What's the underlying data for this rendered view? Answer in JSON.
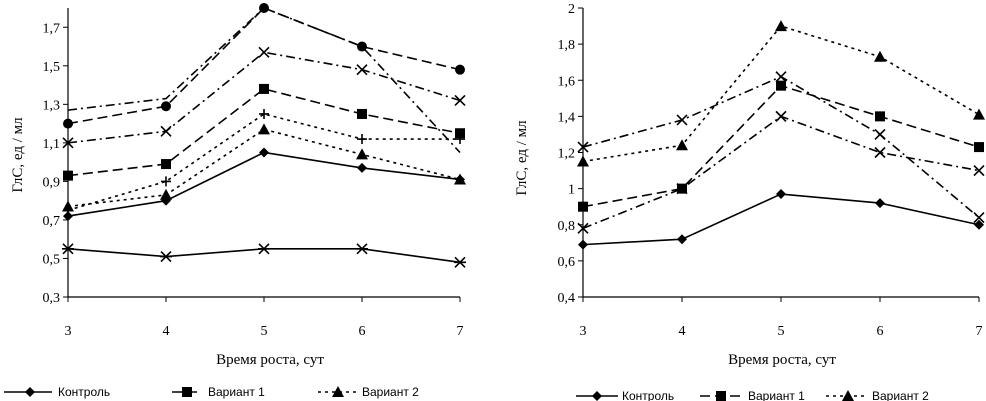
{
  "chart_data": [
    {
      "type": "line",
      "title": "",
      "xlabel": "Время роста, сут",
      "ylabel": "ГлС, ед / мл",
      "x": [
        3,
        4,
        5,
        6,
        7
      ],
      "xlim": [
        3,
        7
      ],
      "ylim": [
        0.3,
        1.8
      ],
      "yticks": [
        "0,3",
        "0,5",
        "0,7",
        "0,9",
        "1,1",
        "1,3",
        "1,5",
        "1,7"
      ],
      "ytick_values": [
        0.3,
        0.5,
        0.7,
        0.9,
        1.1,
        1.3,
        1.5,
        1.7
      ],
      "xticks": [
        "3",
        "4",
        "5",
        "6",
        "7"
      ],
      "grid": false,
      "legend": [
        "Контроль",
        "Вариант 1",
        "Вариант 2"
      ],
      "series": [
        {
          "values": [
            0.72,
            0.8,
            1.05,
            0.97,
            0.91
          ],
          "marker": "diamond",
          "dash": "solid"
        },
        {
          "values": [
            0.93,
            0.99,
            1.38,
            1.25,
            1.15
          ],
          "marker": "square",
          "dash": "long"
        },
        {
          "values": [
            0.77,
            0.83,
            1.17,
            1.04,
            0.91
          ],
          "marker": "triangle",
          "dash": "dot"
        },
        {
          "values": [
            0.75,
            0.9,
            1.25,
            1.12,
            1.12
          ],
          "marker": "plus",
          "dash": "dot"
        },
        {
          "values": [
            1.1,
            1.16,
            1.57,
            1.48,
            1.32
          ],
          "marker": "x",
          "dash": "dashdot"
        },
        {
          "values": [
            1.2,
            1.29,
            1.8,
            1.6,
            1.48
          ],
          "marker": "circle",
          "dash": "long"
        },
        {
          "values": [
            1.27,
            1.33,
            1.8,
            1.6,
            1.05
          ],
          "marker": "none",
          "dash": "dashdot"
        },
        {
          "values": [
            0.55,
            0.51,
            0.55,
            0.55,
            0.48
          ],
          "marker": "asterisk",
          "dash": "solid"
        }
      ]
    },
    {
      "type": "line",
      "title": "",
      "xlabel": "Время роста, сут",
      "ylabel": "ГлС, ед / мл",
      "x": [
        3,
        4,
        5,
        6,
        7
      ],
      "xlim": [
        3,
        7
      ],
      "ylim": [
        0.4,
        2.0
      ],
      "yticks": [
        "0,4",
        "0,6",
        "0,8",
        "1",
        "1,2",
        "1,4",
        "1,6",
        "1,8",
        "2"
      ],
      "ytick_values": [
        0.4,
        0.6,
        0.8,
        1.0,
        1.2,
        1.4,
        1.6,
        1.8,
        2.0
      ],
      "xticks": [
        "3",
        "4",
        "5",
        "6",
        "7"
      ],
      "grid": false,
      "legend": [
        "Контроль",
        "Вариант 1",
        "Вариант 2"
      ],
      "series": [
        {
          "values": [
            0.69,
            0.72,
            0.97,
            0.92,
            0.8
          ],
          "marker": "diamond",
          "dash": "solid"
        },
        {
          "values": [
            0.9,
            1.0,
            1.57,
            1.4,
            1.23
          ],
          "marker": "square",
          "dash": "long"
        },
        {
          "values": [
            1.15,
            1.24,
            1.9,
            1.73,
            1.41
          ],
          "marker": "triangle",
          "dash": "dot"
        },
        {
          "values": [
            1.23,
            1.38,
            1.62,
            1.3,
            0.84
          ],
          "marker": "x",
          "dash": "dashdot"
        },
        {
          "values": [
            0.78,
            1.0,
            1.4,
            1.2,
            1.1
          ],
          "marker": "x",
          "dash": "dashdot"
        }
      ]
    }
  ]
}
